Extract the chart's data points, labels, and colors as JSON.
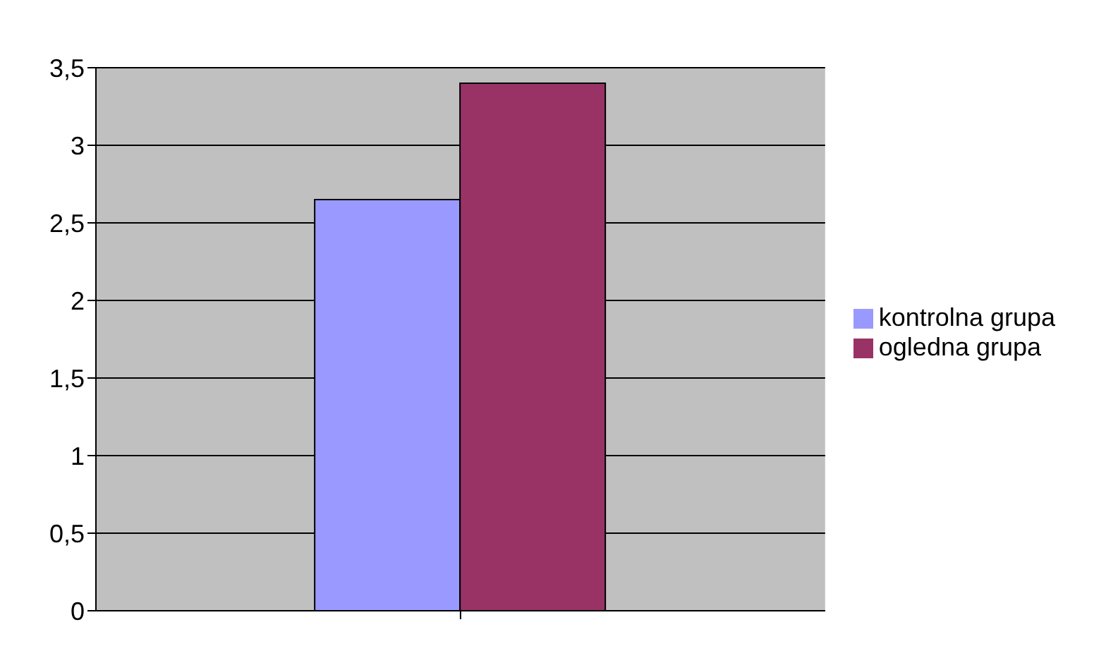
{
  "chart_data": {
    "type": "bar",
    "categories": [
      null
    ],
    "series": [
      {
        "name": "kontrolna grupa",
        "color": "#9999ff",
        "values": [
          2.65
        ]
      },
      {
        "name": "ogledna grupa",
        "color": "#993366",
        "values": [
          3.4
        ]
      }
    ],
    "ylim": [
      0,
      3.5
    ],
    "yticks": [
      0,
      {
        "value": 0.5,
        "label": "0,5"
      },
      1,
      {
        "value": 1.5,
        "label": "1,5"
      },
      2,
      {
        "value": 2.5,
        "label": "2,5"
      },
      3,
      {
        "value": 3.5,
        "label": "3,5"
      }
    ],
    "grid": "y",
    "legend": "right"
  }
}
